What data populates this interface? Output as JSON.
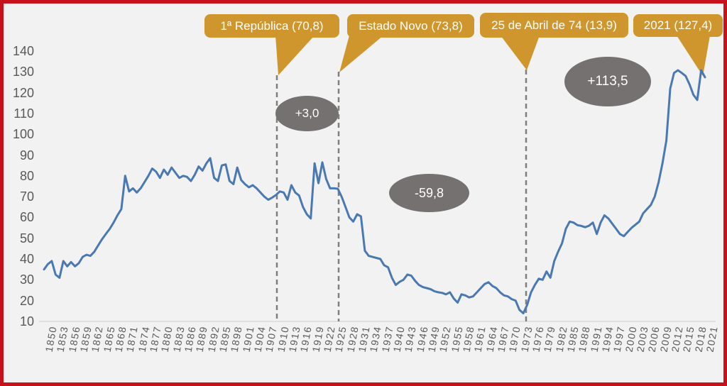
{
  "frame": {
    "border_color": "#C5121B",
    "background_color": "#F2F2F2"
  },
  "chart_data": {
    "type": "line",
    "description": "Evolution of an index (public debt, % of GDP) for Portugal, 1850-2021",
    "year_start": 1850,
    "year_end": 2021,
    "ylim": [
      10,
      140
    ],
    "grid": "off",
    "line_color": "#4A79B2",
    "values": [
      35,
      37.5,
      39,
      32.5,
      31,
      39,
      36.5,
      38.5,
      36.5,
      38,
      41,
      42,
      41.5,
      43.5,
      46.5,
      49.5,
      52,
      54.5,
      57.5,
      61,
      64,
      80,
      72.5,
      74,
      72,
      74,
      77,
      80,
      83.5,
      82,
      79,
      83,
      80.5,
      84,
      81.5,
      79,
      80,
      79.5,
      77.5,
      80.5,
      84.5,
      82.5,
      86,
      88.5,
      79,
      77.5,
      85,
      85.5,
      77.5,
      76,
      84,
      78,
      76,
      74.5,
      75.5,
      74,
      72,
      70,
      68.5,
      69.5,
      70.8,
      72.5,
      72,
      68.5,
      75.5,
      72,
      70.5,
      65,
      61.5,
      59.5,
      86,
      76.5,
      86.5,
      78.5,
      74,
      74,
      73.8,
      70,
      65,
      60,
      58,
      61.5,
      60.5,
      44,
      41.5,
      41,
      40.5,
      40,
      37,
      36,
      31,
      27.5,
      29,
      30,
      32.5,
      32,
      29.5,
      27.5,
      26.5,
      26,
      25.5,
      24.5,
      24,
      23.7,
      23,
      24,
      21,
      19,
      23,
      22.5,
      21.5,
      22,
      24,
      26,
      28,
      28.8,
      27,
      26,
      24,
      22.5,
      22,
      20.7,
      20,
      15.5,
      13.9,
      18,
      24,
      27.5,
      30.5,
      30,
      34,
      31,
      39,
      43.5,
      47.5,
      54.5,
      58,
      57.5,
      56.3,
      55.9,
      55.3,
      56,
      57.5,
      52,
      57.5,
      61,
      59.5,
      57,
      54.5,
      52,
      51,
      53,
      55,
      56.5,
      58,
      62,
      64,
      66,
      70,
      77,
      86,
      97,
      122,
      129.5,
      130.8,
      129.5,
      128,
      124,
      119,
      116.5,
      130.8,
      127.4
    ],
    "x_tick_labels": [
      "1850",
      "1853",
      "1856",
      "1859",
      "1862",
      "1865",
      "1868",
      "1871",
      "1874",
      "1877",
      "1880",
      "1883",
      "1886",
      "1889",
      "1892",
      "1895",
      "1898",
      "1901",
      "1904",
      "1907",
      "1910",
      "1913",
      "1916",
      "1919",
      "1922",
      "1925",
      "1928",
      "1931",
      "1934",
      "1937",
      "1940",
      "1943",
      "1946",
      "1949",
      "1952",
      "1955",
      "1958",
      "1961",
      "1964",
      "1967",
      "1970",
      "1973",
      "1976",
      "1979",
      "1982",
      "1985",
      "1988",
      "1991",
      "1994",
      "1997",
      "2000",
      "2003",
      "2006",
      "2009",
      "2012",
      "2015",
      "2018",
      "2021"
    ],
    "y_tick_labels": [
      "10",
      "20",
      "30",
      "40",
      "50",
      "60",
      "70",
      "80",
      "90",
      "100",
      "110",
      "120",
      "130",
      "140"
    ],
    "annotations": {
      "callouts": [
        {
          "label": "1ª República (70,8)",
          "year": 1910,
          "value": 70.8
        },
        {
          "label": "Estado Novo (73,8)",
          "year": 1926,
          "value": 73.8
        },
        {
          "label": "25 de Abril de 74 (13,9)",
          "year": 1974,
          "value": 13.9
        },
        {
          "label": "2021 (127,4)",
          "year": 2021,
          "value": 127.4
        }
      ],
      "change_bubbles": [
        {
          "label": "+3,0"
        },
        {
          "label": "-59,8"
        },
        {
          "label": "+113,5"
        }
      ],
      "colors": {
        "callout_fill": "#CE962C",
        "bubble_fill": "#757171",
        "dashed_line": "#7F7F7F"
      }
    }
  }
}
